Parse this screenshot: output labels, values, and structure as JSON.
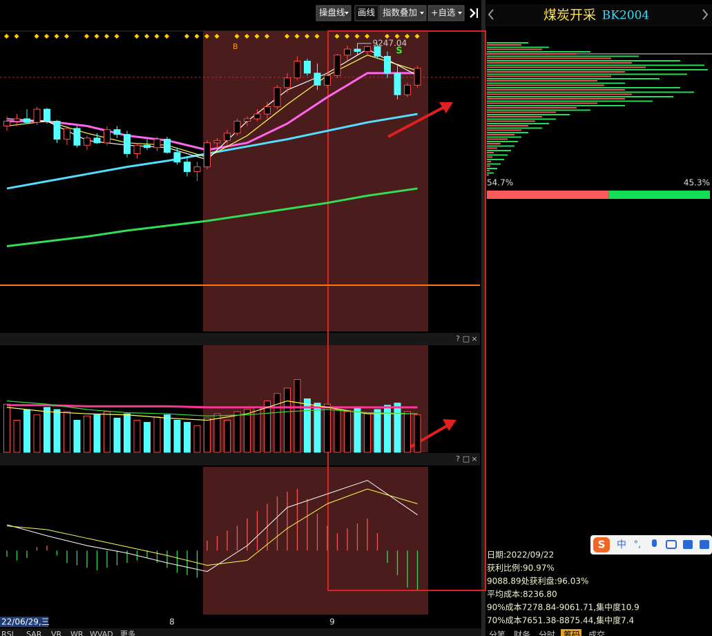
{
  "toolbar": {
    "buttons": [
      "操盘线",
      "画线",
      "指数叠加",
      "+自选"
    ]
  },
  "panel": {
    "name": "煤炭开采",
    "code": "BK2004",
    "profit": {
      "value": 54.7,
      "label": "54.7%"
    },
    "loss": {
      "value": 45.3,
      "label": "45.3%"
    },
    "chips": {
      "green": [
        60,
        90,
        150,
        220,
        280,
        315,
        320,
        290,
        250,
        200,
        280,
        300,
        270,
        240,
        200,
        150,
        120,
        100,
        90,
        80,
        60,
        50,
        45,
        40,
        35,
        30,
        25,
        20,
        15,
        10
      ],
      "red": [
        50,
        80,
        130,
        180,
        210,
        230,
        200,
        180,
        160,
        170,
        200,
        210,
        200,
        160,
        130,
        100,
        80,
        70,
        60,
        50,
        40,
        30,
        20,
        15,
        10,
        8,
        6,
        5,
        4,
        3
      ]
    },
    "info": [
      "日期:2022/09/22",
      "获利比例:90.97%",
      "9088.89处获利盘:96.03%",
      "平均成本:8236.80",
      "90%成本7278.84-9061.71,集中度10.9",
      "70%成本7651.38-8875.44,集中度7.4"
    ],
    "tabs": [
      "分笔",
      "财务",
      "分时",
      "筹码",
      "成交"
    ]
  },
  "main": {
    "ylim": [
      6850,
      9350
    ],
    "ohlc": [
      [
        8560,
        8640,
        8520,
        8600
      ],
      [
        8600,
        8660,
        8560,
        8620
      ],
      [
        8620,
        8700,
        8580,
        8590
      ],
      [
        8590,
        8720,
        8570,
        8700
      ],
      [
        8700,
        8710,
        8580,
        8600
      ],
      [
        8600,
        8610,
        8420,
        8450
      ],
      [
        8450,
        8560,
        8400,
        8540
      ],
      [
        8540,
        8560,
        8380,
        8400
      ],
      [
        8400,
        8480,
        8360,
        8460
      ],
      [
        8460,
        8500,
        8410,
        8420
      ],
      [
        8420,
        8560,
        8400,
        8530
      ],
      [
        8530,
        8560,
        8460,
        8490
      ],
      [
        8490,
        8520,
        8300,
        8330
      ],
      [
        8330,
        8420,
        8290,
        8400
      ],
      [
        8400,
        8450,
        8360,
        8380
      ],
      [
        8380,
        8470,
        8350,
        8450
      ],
      [
        8450,
        8470,
        8330,
        8340
      ],
      [
        8340,
        8380,
        8240,
        8260
      ],
      [
        8260,
        8300,
        8140,
        8180
      ],
      [
        8180,
        8260,
        8100,
        8220
      ],
      [
        8220,
        8440,
        8200,
        8420
      ],
      [
        8420,
        8460,
        8380,
        8440
      ],
      [
        8440,
        8530,
        8400,
        8500
      ],
      [
        8500,
        8620,
        8480,
        8600
      ],
      [
        8600,
        8640,
        8560,
        8620
      ],
      [
        8620,
        8700,
        8600,
        8660
      ],
      [
        8660,
        8760,
        8620,
        8720
      ],
      [
        8720,
        8900,
        8700,
        8880
      ],
      [
        8880,
        9000,
        8840,
        8960
      ],
      [
        8960,
        9140,
        8940,
        9100
      ],
      [
        9100,
        9120,
        8980,
        9000
      ],
      [
        9000,
        9080,
        8860,
        8900
      ],
      [
        8900,
        9000,
        8880,
        8980
      ],
      [
        8980,
        9160,
        8960,
        9150
      ],
      [
        9150,
        9230,
        9100,
        9200
      ],
      [
        9200,
        9247.04,
        9150,
        9180
      ],
      [
        9180,
        9230,
        9140,
        9220
      ],
      [
        9220,
        9240,
        9120,
        9140
      ],
      [
        9140,
        9180,
        8960,
        9000
      ],
      [
        9000,
        9060,
        8780,
        8820
      ],
      [
        8820,
        8920,
        8800,
        8900
      ],
      [
        8900,
        9060,
        8880,
        9040
      ]
    ],
    "signals": [
      "S",
      "B"
    ],
    "ma": {
      "x": [
        0,
        4,
        8,
        12,
        16,
        20,
        24,
        28,
        32,
        36,
        41
      ],
      "series": [
        {
          "color": "#ffffff",
          "width": 1.2,
          "values": [
            8620,
            8600,
            8440,
            8400,
            8380,
            8280,
            8600,
            8860,
            9000,
            9200,
            8980
          ]
        },
        {
          "color": "#ffff55",
          "width": 1.2,
          "values": [
            8560,
            8600,
            8500,
            8420,
            8400,
            8300,
            8480,
            8740,
            8980,
            9150,
            9020
          ]
        },
        {
          "color": "#ff66ee",
          "width": 3,
          "values": [
            8600,
            8600,
            8560,
            8480,
            8440,
            8360,
            8420,
            8580,
            8800,
            9000,
            9000
          ]
        },
        {
          "color": "#55ddff",
          "width": 3,
          "values": [
            8040,
            8100,
            8160,
            8220,
            8270,
            8330,
            8390,
            8450,
            8520,
            8590,
            8660
          ]
        },
        {
          "color": "#33dd55",
          "width": 3,
          "values": [
            7560,
            7600,
            7640,
            7690,
            7730,
            7770,
            7820,
            7870,
            7920,
            7980,
            8040
          ]
        }
      ]
    },
    "level": 7235
  },
  "volume": {
    "ylim": [
      0,
      100
    ],
    "values": [
      45,
      30,
      40,
      35,
      42,
      40,
      38,
      30,
      34,
      35,
      38,
      32,
      36,
      30,
      28,
      33,
      35,
      30,
      28,
      25,
      32,
      36,
      30,
      38,
      40,
      42,
      48,
      55,
      60,
      68,
      50,
      46,
      45,
      40,
      38,
      42,
      36,
      40,
      44,
      46,
      38,
      35
    ],
    "series": [
      {
        "color": "#ff3399",
        "width": 3,
        "values": [
          44,
          44,
          43,
          43,
          43,
          42,
          42,
          42,
          42,
          42,
          42
        ]
      },
      {
        "color": "#ffff55",
        "width": 1.2,
        "values": [
          42,
          38,
          36,
          35,
          32,
          30,
          36,
          48,
          42,
          36,
          36
        ]
      },
      {
        "color": "#33dd33",
        "width": 1.2,
        "values": [
          48,
          45,
          40,
          37,
          36,
          34,
          35,
          38,
          40,
          37,
          36
        ]
      }
    ]
  },
  "macd": {
    "ylim": [
      -52,
      68
    ],
    "hist": [
      -5,
      -8,
      -6,
      3,
      4,
      -4,
      -10,
      -12,
      -14,
      -16,
      -14,
      -12,
      -10,
      -8,
      -6,
      -10,
      -14,
      -18,
      -20,
      -22,
      8,
      12,
      16,
      20,
      26,
      32,
      38,
      44,
      48,
      50,
      42,
      30,
      20,
      14,
      18,
      22,
      26,
      14,
      -10,
      -20,
      -30,
      -32
    ],
    "dif": [
      21,
      12,
      4,
      -2,
      -10,
      -17,
      4,
      35,
      46,
      57,
      29
    ],
    "dea": [
      20,
      17,
      10,
      3,
      -4,
      -12,
      -8,
      18,
      38,
      50,
      38
    ]
  },
  "xaxis": {
    "date": "22/06/29,三",
    "months": [
      "8",
      "9"
    ]
  },
  "controls": [
    "?",
    "□",
    "×"
  ],
  "tabs": [
    "RSI",
    "SAR",
    "VR",
    "WR",
    "WVAD",
    "更多"
  ],
  "ime": [
    "中",
    "°,"
  ]
}
